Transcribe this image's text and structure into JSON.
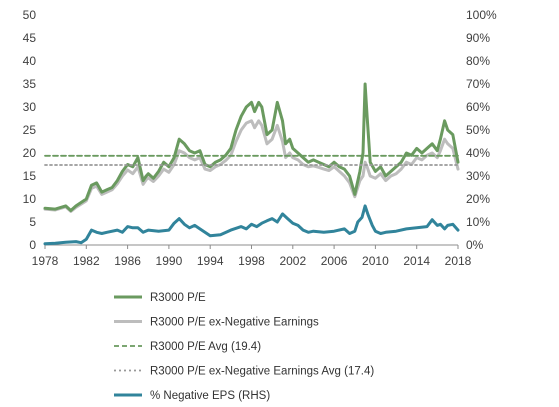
{
  "chart_data": {
    "type": "line",
    "title": "",
    "xlabel": "",
    "ylabel": "",
    "x_ticks": [
      "1978",
      "1982",
      "1986",
      "1990",
      "1994",
      "1998",
      "2002",
      "2006",
      "2010",
      "2014",
      "2018"
    ],
    "xlim": [
      1978,
      2018
    ],
    "ylim": [
      0,
      50
    ],
    "y_ticks": [
      "0",
      "5",
      "10",
      "15",
      "20",
      "25",
      "30",
      "35",
      "40",
      "45",
      "50"
    ],
    "y2lim": [
      0,
      100
    ],
    "y2_ticks": [
      "0%",
      "10%",
      "20%",
      "30%",
      "40%",
      "50%",
      "60%",
      "70%",
      "80%",
      "90%",
      "100%"
    ],
    "grid": false,
    "legend_position": "bottom",
    "series": [
      {
        "name": "R3000 P/E",
        "color": "#6a9a5f",
        "style": "solid",
        "axis": "left",
        "x": [
          1978,
          1979,
          1980,
          1980.5,
          1981,
          1982,
          1982.5,
          1983,
          1983.5,
          1984,
          1984.5,
          1985,
          1985.5,
          1986,
          1986.5,
          1987,
          1987.5,
          1987.8,
          1988,
          1988.5,
          1989,
          1989.5,
          1990,
          1990.5,
          1991,
          1991.5,
          1992,
          1992.5,
          1993,
          1993.5,
          1994,
          1994.5,
          1995,
          1995.5,
          1996,
          1996.5,
          1997,
          1997.5,
          1998,
          1998.3,
          1998.7,
          1999,
          1999.5,
          2000,
          2000.5,
          2001,
          2001.3,
          2001.7,
          2002,
          2002.5,
          2003,
          2003.5,
          2004,
          2004.5,
          2005,
          2005.5,
          2006,
          2006.5,
          2007,
          2007.5,
          2008,
          2008.5,
          2008.8,
          2009,
          2009.2,
          2009.5,
          2010,
          2010.5,
          2011,
          2011.5,
          2012,
          2012.5,
          2013,
          2013.5,
          2014,
          2014.5,
          2015,
          2015.5,
          2016,
          2016.3,
          2016.7,
          2017,
          2017.5,
          2018
        ],
        "y": [
          8,
          7.8,
          8.5,
          7.5,
          8.5,
          10,
          13,
          13.5,
          11.5,
          12,
          12.5,
          14,
          16,
          17.5,
          17,
          19,
          14,
          15,
          15.5,
          14.5,
          16,
          18,
          17,
          19,
          23,
          22,
          20.5,
          20,
          20.5,
          17.5,
          17,
          18,
          18.5,
          19.5,
          21,
          25,
          28,
          30,
          31,
          29,
          31,
          30,
          24,
          25,
          31,
          27,
          22,
          23,
          21,
          20,
          19,
          18,
          18.5,
          18,
          17.5,
          17,
          18,
          17,
          16.5,
          15,
          11,
          16,
          20,
          35,
          28,
          18,
          16,
          17,
          15,
          16,
          17,
          18,
          20,
          19.5,
          21,
          20,
          21,
          22,
          20.5,
          23,
          27,
          25,
          24,
          18
        ]
      },
      {
        "name": "R3000 P/E ex-Negative Earnings",
        "color": "#bdbdbd",
        "style": "solid",
        "axis": "left",
        "x": [
          1978,
          1979,
          1980,
          1980.5,
          1981,
          1982,
          1982.5,
          1983,
          1983.5,
          1984,
          1984.5,
          1985,
          1985.5,
          1986,
          1986.5,
          1987,
          1987.5,
          1987.8,
          1988,
          1988.5,
          1989,
          1989.5,
          1990,
          1990.5,
          1991,
          1991.5,
          1992,
          1992.5,
          1993,
          1993.5,
          1994,
          1994.5,
          1995,
          1995.5,
          1996,
          1996.5,
          1997,
          1997.5,
          1998,
          1998.3,
          1998.7,
          1999,
          1999.5,
          2000,
          2000.5,
          2001,
          2001.3,
          2001.7,
          2002,
          2002.5,
          2003,
          2003.5,
          2004,
          2004.5,
          2005,
          2005.5,
          2006,
          2006.5,
          2007,
          2007.5,
          2008,
          2008.5,
          2008.8,
          2009,
          2009.2,
          2009.5,
          2010,
          2010.5,
          2011,
          2011.5,
          2012,
          2012.5,
          2013,
          2013.5,
          2014,
          2014.5,
          2015,
          2015.5,
          2016,
          2016.3,
          2016.7,
          2017,
          2017.5,
          2018
        ],
        "y": [
          7.8,
          7.6,
          8.3,
          7.3,
          8.2,
          9.6,
          12.3,
          12.8,
          11,
          11.5,
          12,
          13.3,
          15,
          16.3,
          15.5,
          17,
          13.2,
          14.2,
          14.6,
          13.8,
          15,
          16.5,
          15.8,
          17.5,
          20.5,
          20,
          19,
          18.5,
          19,
          16.5,
          16.2,
          17,
          17.5,
          18.4,
          19.5,
          22.5,
          25,
          26.5,
          27,
          25.5,
          27,
          26,
          22,
          23,
          26,
          22.5,
          19,
          20,
          19,
          18.5,
          17.5,
          17,
          17.2,
          16.9,
          16.5,
          16.2,
          17,
          16,
          15,
          13.5,
          10.5,
          14,
          15,
          18,
          17,
          15,
          14.5,
          15.5,
          14,
          15,
          15.5,
          16.5,
          18,
          17.5,
          19,
          18.5,
          19.5,
          20,
          19,
          20.5,
          23,
          22,
          21,
          16.5
        ]
      },
      {
        "name": "R3000 P/E Avg (19.4)",
        "color": "#6a9a5f",
        "style": "dashed",
        "axis": "left",
        "x": [
          1978,
          2018
        ],
        "y": [
          19.4,
          19.4
        ]
      },
      {
        "name": "R3000 P/E ex-Negative Earnings  Avg (17.4)",
        "color": "#999999",
        "style": "dotted",
        "axis": "left",
        "x": [
          1978,
          2018
        ],
        "y": [
          17.4,
          17.4
        ]
      },
      {
        "name": "% Negative EPS (RHS)",
        "color": "#31849b",
        "style": "solid",
        "axis": "right",
        "x": [
          1978,
          1979,
          1980,
          1981,
          1981.5,
          1982,
          1982.5,
          1983,
          1983.5,
          1984,
          1985,
          1985.5,
          1986,
          1986.5,
          1987,
          1987.5,
          1988,
          1989,
          1990,
          1990.5,
          1991,
          1991.5,
          1992,
          1992.5,
          1993,
          1994,
          1995,
          1996,
          1997,
          1997.5,
          1998,
          1998.5,
          1999,
          1999.5,
          2000,
          2000.5,
          2001,
          2001.5,
          2002,
          2002.5,
          2003,
          2003.5,
          2004,
          2005,
          2006,
          2007,
          2007.5,
          2008,
          2008.3,
          2008.7,
          2009,
          2009.3,
          2009.7,
          2010,
          2010.5,
          2011,
          2012,
          2013,
          2014,
          2015,
          2015.5,
          2016,
          2016.3,
          2016.7,
          2017,
          2017.5,
          2018
        ],
        "y": [
          0.5,
          0.8,
          1.2,
          1.5,
          1,
          2.5,
          6.5,
          5.5,
          5,
          5.5,
          6.5,
          5.5,
          8,
          7.5,
          7.5,
          5.5,
          6.5,
          6,
          6.5,
          9.5,
          11.5,
          9,
          7.5,
          8.5,
          7,
          4,
          4.5,
          6.5,
          8,
          7,
          9,
          8,
          9.5,
          10.5,
          11.5,
          10,
          13.5,
          11.5,
          9.5,
          8.5,
          6.5,
          5.5,
          6,
          5.5,
          6,
          7,
          5,
          6,
          10,
          12,
          17,
          13,
          8.5,
          6,
          5,
          5.5,
          6,
          7,
          7.5,
          8,
          11,
          8.5,
          9,
          7,
          8.5,
          9,
          6.5
        ]
      }
    ]
  }
}
